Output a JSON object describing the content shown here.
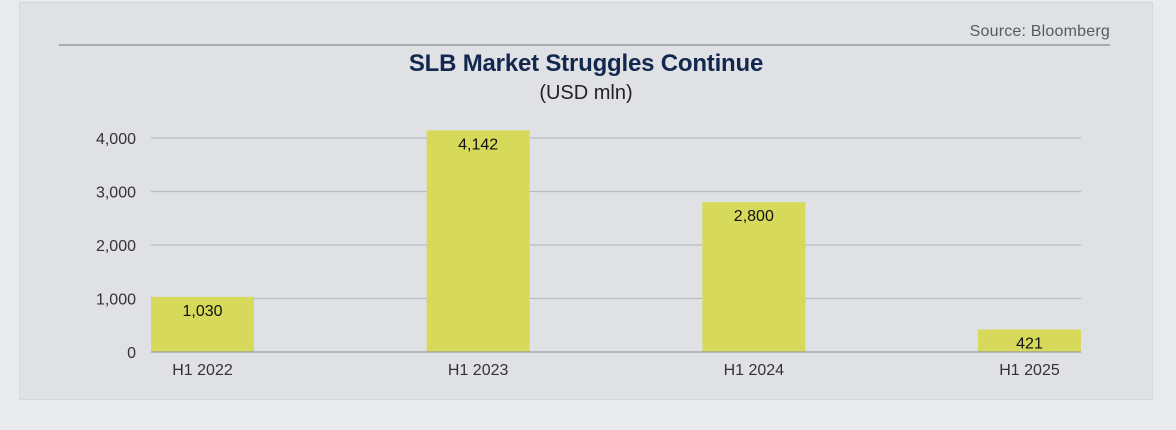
{
  "source": "Source: Bloomberg",
  "chart_data": {
    "type": "bar",
    "title": "SLB Market Struggles Continue",
    "subtitle": "(USD mln)",
    "categories": [
      "H1 2022",
      "H1 2023",
      "H1 2024",
      "H1 2025"
    ],
    "values": [
      1030,
      4142,
      2800,
      421
    ],
    "data_labels": [
      "1,030",
      "4,142",
      "2,800",
      "421"
    ],
    "yticks": [
      0,
      1000,
      2000,
      3000,
      4000
    ],
    "ytick_labels": [
      "0",
      "1,000",
      "2,000",
      "3,000",
      "4,000"
    ],
    "ylim": [
      0,
      4000
    ],
    "grid": true,
    "legend": "none",
    "colors": {
      "bar": "#d6d95a",
      "grid": "#b9bbc0",
      "axis": "#9a9da3"
    }
  }
}
